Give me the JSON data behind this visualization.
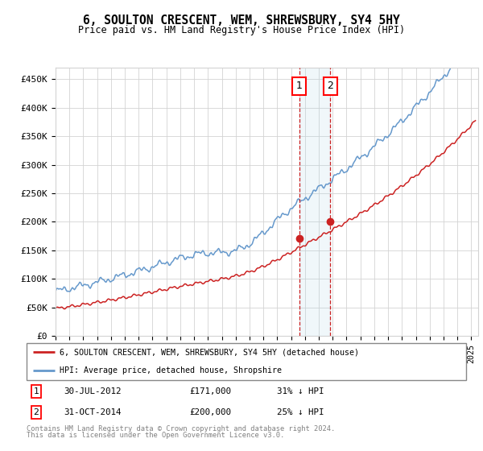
{
  "title": "6, SOULTON CRESCENT, WEM, SHREWSBURY, SY4 5HY",
  "subtitle": "Price paid vs. HM Land Registry's House Price Index (HPI)",
  "ylabel_ticks": [
    "£0",
    "£50K",
    "£100K",
    "£150K",
    "£200K",
    "£250K",
    "£300K",
    "£350K",
    "£400K",
    "£450K"
  ],
  "ytick_values": [
    0,
    50000,
    100000,
    150000,
    200000,
    250000,
    300000,
    350000,
    400000,
    450000
  ],
  "xlim_start": 1995.0,
  "xlim_end": 2025.5,
  "ylim": [
    0,
    470000
  ],
  "hpi_color": "#6699cc",
  "price_color": "#cc2222",
  "marker1_date": 2012.58,
  "marker2_date": 2014.83,
  "marker1_price": 171000,
  "marker2_price": 200000,
  "legend_label1": "6, SOULTON CRESCENT, WEM, SHREWSBURY, SY4 5HY (detached house)",
  "legend_label2": "HPI: Average price, detached house, Shropshire",
  "footnote1": "Contains HM Land Registry data © Crown copyright and database right 2024.",
  "footnote2": "This data is licensed under the Open Government Licence v3.0.",
  "table_row1": [
    "1",
    "30-JUL-2012",
    "£171,000",
    "31% ↓ HPI"
  ],
  "table_row2": [
    "2",
    "31-OCT-2014",
    "£200,000",
    "25% ↓ HPI"
  ]
}
